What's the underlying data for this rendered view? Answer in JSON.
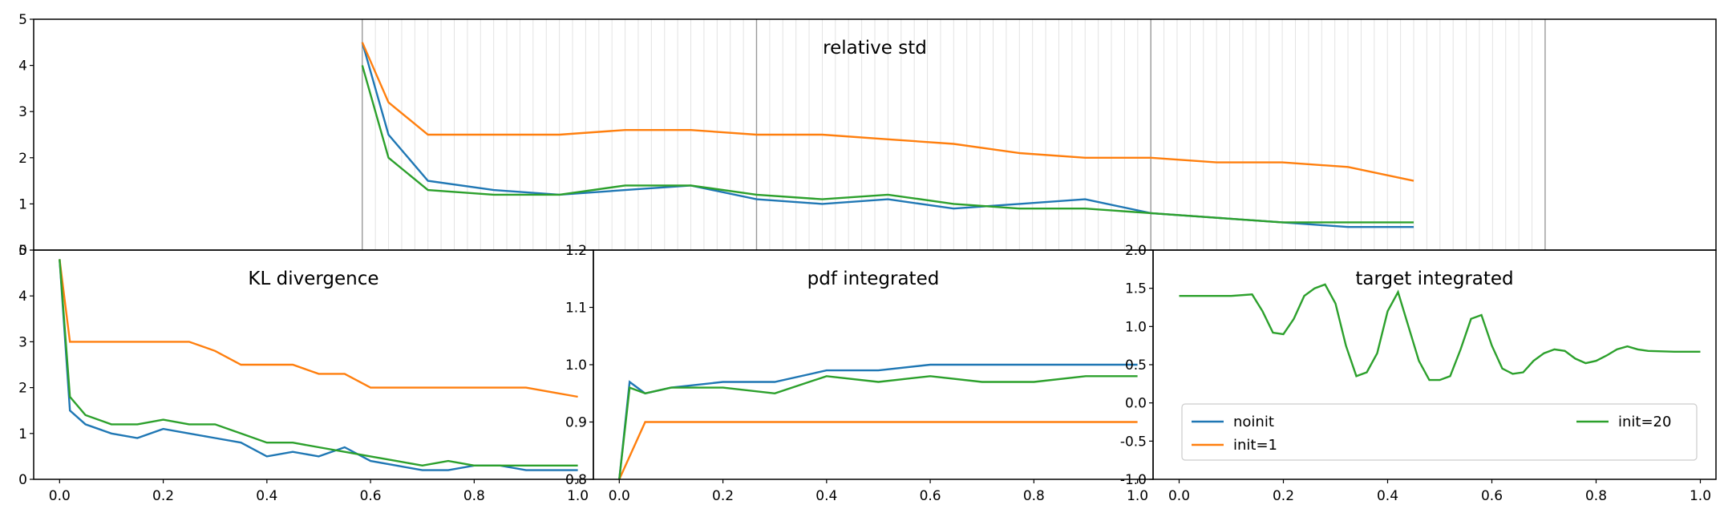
{
  "chart_data": [
    {
      "id": "relative-std",
      "type": "line",
      "title": "relative std",
      "xlim": [
        0,
        1.0
      ],
      "ylim": [
        0,
        5
      ],
      "yticks": [
        "0",
        "1",
        "2",
        "3",
        "4",
        "5"
      ],
      "xticks": [],
      "grid": "vertical lines (light gray fine grid, darker every 20th)",
      "series": [
        {
          "name": "noinit",
          "color": "#1f77b4",
          "x": [
            0.1,
            0.12,
            0.15,
            0.2,
            0.25,
            0.3,
            0.35,
            0.4,
            0.45,
            0.5,
            0.55,
            0.6,
            0.65,
            0.7,
            0.75,
            0.8,
            0.85,
            0.9
          ],
          "y": [
            4.5,
            2.5,
            1.5,
            1.3,
            1.2,
            1.3,
            1.4,
            1.1,
            1.0,
            1.1,
            0.9,
            1.0,
            1.1,
            0.8,
            0.7,
            0.6,
            0.5,
            0.5
          ]
        },
        {
          "name": "init=1",
          "color": "#ff7f0e",
          "x": [
            0.1,
            0.12,
            0.15,
            0.2,
            0.25,
            0.3,
            0.35,
            0.4,
            0.45,
            0.5,
            0.55,
            0.6,
            0.65,
            0.7,
            0.75,
            0.8,
            0.85,
            0.9
          ],
          "y": [
            4.5,
            3.2,
            2.5,
            2.5,
            2.5,
            2.6,
            2.6,
            2.5,
            2.5,
            2.4,
            2.3,
            2.1,
            2.0,
            2.0,
            1.9,
            1.9,
            1.8,
            1.5
          ]
        },
        {
          "name": "init=20",
          "color": "#2ca02c",
          "x": [
            0.1,
            0.12,
            0.15,
            0.2,
            0.25,
            0.3,
            0.35,
            0.4,
            0.45,
            0.5,
            0.55,
            0.6,
            0.65,
            0.7,
            0.75,
            0.8,
            0.85,
            0.9
          ],
          "y": [
            4.0,
            2.0,
            1.3,
            1.2,
            1.2,
            1.4,
            1.4,
            1.2,
            1.1,
            1.2,
            1.0,
            0.9,
            0.9,
            0.8,
            0.7,
            0.6,
            0.6,
            0.6
          ]
        }
      ]
    },
    {
      "id": "kl-divergence",
      "type": "line",
      "title": "KL divergence",
      "xlim": [
        -0.05,
        1.03
      ],
      "ylim": [
        0,
        5
      ],
      "xticks": [
        "0.0",
        "0.2",
        "0.4",
        "0.6",
        "0.8",
        "1.0"
      ],
      "yticks": [
        "0",
        "1",
        "2",
        "3",
        "4",
        "5"
      ],
      "series": [
        {
          "name": "noinit",
          "color": "#1f77b4",
          "x": [
            0,
            0.02,
            0.05,
            0.1,
            0.15,
            0.2,
            0.25,
            0.3,
            0.35,
            0.4,
            0.45,
            0.5,
            0.55,
            0.6,
            0.65,
            0.7,
            0.75,
            0.8,
            0.85,
            0.9,
            0.95,
            1.0
          ],
          "y": [
            4.8,
            1.5,
            1.2,
            1.0,
            0.9,
            1.1,
            1.0,
            0.9,
            0.8,
            0.5,
            0.6,
            0.5,
            0.7,
            0.4,
            0.3,
            0.2,
            0.2,
            0.3,
            0.3,
            0.2,
            0.2,
            0.2
          ]
        },
        {
          "name": "init=1",
          "color": "#ff7f0e",
          "x": [
            0,
            0.02,
            0.05,
            0.1,
            0.15,
            0.2,
            0.25,
            0.3,
            0.35,
            0.4,
            0.45,
            0.5,
            0.55,
            0.6,
            0.65,
            0.7,
            0.75,
            0.8,
            0.85,
            0.9,
            0.95,
            1.0
          ],
          "y": [
            4.8,
            3.0,
            3.0,
            3.0,
            3.0,
            3.0,
            3.0,
            2.8,
            2.5,
            2.5,
            2.5,
            2.3,
            2.3,
            2.0,
            2.0,
            2.0,
            2.0,
            2.0,
            2.0,
            2.0,
            1.9,
            1.8
          ]
        },
        {
          "name": "init=20",
          "color": "#2ca02c",
          "x": [
            0,
            0.02,
            0.05,
            0.1,
            0.15,
            0.2,
            0.25,
            0.3,
            0.35,
            0.4,
            0.45,
            0.5,
            0.55,
            0.6,
            0.65,
            0.7,
            0.75,
            0.8,
            0.85,
            0.9,
            0.95,
            1.0
          ],
          "y": [
            4.8,
            1.8,
            1.4,
            1.2,
            1.2,
            1.3,
            1.2,
            1.2,
            1.0,
            0.8,
            0.8,
            0.7,
            0.6,
            0.5,
            0.4,
            0.3,
            0.4,
            0.3,
            0.3,
            0.3,
            0.3,
            0.3
          ]
        }
      ]
    },
    {
      "id": "pdf-integrated",
      "type": "line",
      "title": "pdf integrated",
      "xlim": [
        -0.05,
        1.03
      ],
      "ylim": [
        0.8,
        1.2
      ],
      "xticks": [
        "0.0",
        "0.2",
        "0.4",
        "0.6",
        "0.8",
        "1.0"
      ],
      "yticks": [
        "0.8",
        "0.9",
        "1.0",
        "1.1",
        "1.2"
      ],
      "series": [
        {
          "name": "noinit",
          "color": "#1f77b4",
          "x": [
            0,
            0.02,
            0.05,
            0.1,
            0.2,
            0.3,
            0.4,
            0.5,
            0.6,
            0.7,
            0.8,
            0.9,
            1.0
          ],
          "y": [
            0.8,
            0.97,
            0.95,
            0.96,
            0.97,
            0.97,
            0.99,
            0.99,
            1.0,
            1.0,
            1.0,
            1.0,
            1.0
          ]
        },
        {
          "name": "init=1",
          "color": "#ff7f0e",
          "x": [
            0,
            0.05,
            0.1,
            0.2,
            0.3,
            0.4,
            0.5,
            0.6,
            0.7,
            0.8,
            0.9,
            1.0
          ],
          "y": [
            0.8,
            0.9,
            0.9,
            0.9,
            0.9,
            0.9,
            0.9,
            0.9,
            0.9,
            0.9,
            0.9,
            0.9
          ]
        },
        {
          "name": "init=20",
          "color": "#2ca02c",
          "x": [
            0,
            0.02,
            0.05,
            0.1,
            0.2,
            0.3,
            0.4,
            0.5,
            0.6,
            0.7,
            0.8,
            0.9,
            1.0
          ],
          "y": [
            0.8,
            0.96,
            0.95,
            0.96,
            0.96,
            0.95,
            0.98,
            0.97,
            0.98,
            0.97,
            0.97,
            0.98,
            0.98
          ]
        }
      ]
    },
    {
      "id": "target-integrated",
      "type": "line",
      "title": "target integrated",
      "xlim": [
        -0.05,
        1.03
      ],
      "ylim": [
        -1.0,
        2.0
      ],
      "xticks": [
        "0.0",
        "0.2",
        "0.4",
        "0.6",
        "0.8",
        "1.0"
      ],
      "yticks": [
        "-1.0",
        "-0.5",
        "0.0",
        "0.5",
        "1.0",
        "1.5",
        "2.0"
      ],
      "legend_position": "lower",
      "series": [
        {
          "name": "noinit",
          "color": "#1f77b4"
        },
        {
          "name": "init=1",
          "color": "#ff7f0e"
        },
        {
          "name": "init=20",
          "color": "#2ca02c",
          "x": [
            0.0,
            0.1,
            0.14,
            0.16,
            0.18,
            0.2,
            0.22,
            0.24,
            0.26,
            0.28,
            0.3,
            0.32,
            0.34,
            0.36,
            0.38,
            0.4,
            0.42,
            0.44,
            0.46,
            0.48,
            0.5,
            0.52,
            0.54,
            0.56,
            0.58,
            0.6,
            0.62,
            0.64,
            0.66,
            0.68,
            0.7,
            0.72,
            0.74,
            0.76,
            0.78,
            0.8,
            0.82,
            0.84,
            0.86,
            0.88,
            0.9,
            0.95,
            1.0
          ],
          "y": [
            1.4,
            1.4,
            1.42,
            1.2,
            0.92,
            0.9,
            1.1,
            1.4,
            1.5,
            1.55,
            1.3,
            0.75,
            0.35,
            0.4,
            0.65,
            1.2,
            1.45,
            1.0,
            0.55,
            0.3,
            0.3,
            0.35,
            0.7,
            1.1,
            1.15,
            0.75,
            0.45,
            0.38,
            0.4,
            0.55,
            0.65,
            0.7,
            0.68,
            0.58,
            0.52,
            0.55,
            0.62,
            0.7,
            0.74,
            0.7,
            0.68,
            0.67,
            0.67
          ]
        }
      ]
    }
  ]
}
